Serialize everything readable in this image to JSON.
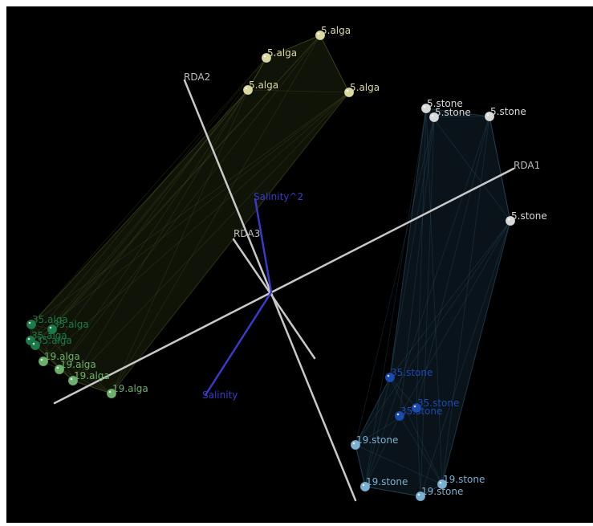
{
  "chart_data": {
    "type": "scatter",
    "projection": "3d",
    "title": "",
    "axes": [
      {
        "name": "RDA1",
        "color": "#c8c8c8"
      },
      {
        "name": "RDA2",
        "color": "#c8c8c8"
      },
      {
        "name": "RDA3",
        "color": "#c8c8c8"
      }
    ],
    "biplot_vectors": [
      {
        "name": "Salinity^2",
        "color": "#3a3ac8"
      },
      {
        "name": "Salinity",
        "color": "#3a3ac8"
      }
    ],
    "groups": [
      {
        "name": "alga",
        "hull_color": "#5a6a2a"
      },
      {
        "name": "stone",
        "hull_color": "#3a6a8a"
      }
    ],
    "series": [
      {
        "name": "5.alga",
        "color": "#d8d8a0",
        "count": 4
      },
      {
        "name": "19.alga",
        "color": "#6ab06a",
        "count": 4
      },
      {
        "name": "35.alga",
        "color": "#1a7a4a",
        "count": 4
      },
      {
        "name": "5.stone",
        "color": "#d8d8d8",
        "count": 4
      },
      {
        "name": "19.stone",
        "color": "#7ab0d0",
        "count": 4
      },
      {
        "name": "35.stone",
        "color": "#1a4ab0",
        "count": 3
      }
    ],
    "background": "#000000",
    "grid": false,
    "legend": "none"
  }
}
